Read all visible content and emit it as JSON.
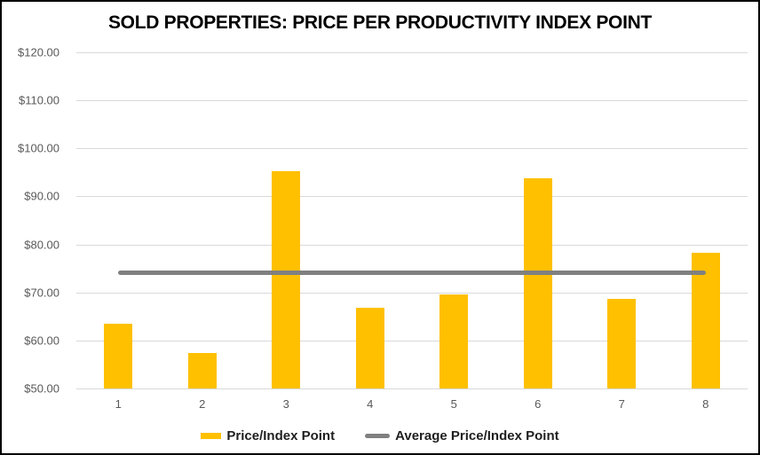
{
  "chart": {
    "title": "SOLD PROPERTIES: PRICE PER PRODUCTIVITY INDEX POINT"
  },
  "legend": {
    "items": [
      {
        "label": "Price/Index Point",
        "marker": "bar-swatch",
        "color": "#FFC000"
      },
      {
        "label": "Average Price/Index Point",
        "marker": "line-swatch",
        "color": "#808080"
      }
    ]
  },
  "chart_data": {
    "type": "bar",
    "title": "SOLD PROPERTIES: PRICE PER PRODUCTIVITY INDEX POINT",
    "categories": [
      "1",
      "2",
      "3",
      "4",
      "5",
      "6",
      "7",
      "8"
    ],
    "series": [
      {
        "name": "Price/Index Point",
        "type": "bar",
        "color": "#FFC000",
        "values": [
          63.4,
          57.4,
          95.2,
          66.9,
          69.6,
          93.8,
          68.7,
          78.2
        ]
      },
      {
        "name": "Average Price/Index Point",
        "type": "line",
        "color": "#808080",
        "values": [
          74.15,
          74.15,
          74.15,
          74.15,
          74.15,
          74.15,
          74.15,
          74.15
        ]
      }
    ],
    "xlabel": "",
    "ylabel": "",
    "ylim": [
      50,
      120
    ],
    "yticks": [
      {
        "value": 120,
        "label": "$120.00"
      },
      {
        "value": 110,
        "label": "$110.00"
      },
      {
        "value": 100,
        "label": "$100.00"
      },
      {
        "value": 90,
        "label": "$90.00"
      },
      {
        "value": 80,
        "label": "$80.00"
      },
      {
        "value": 70,
        "label": "$70.00"
      },
      {
        "value": 60,
        "label": "$60.00"
      },
      {
        "value": 50,
        "label": "$50.00"
      }
    ],
    "grid": true,
    "legend_position": "bottom",
    "colors": {
      "bar": "#FFC000",
      "average_line": "#808080",
      "gridline": "#D9D9D9",
      "axis_text": "#595959",
      "title_text": "#000000",
      "legend_text": "#1F1F1F",
      "background": "#FFFFFF",
      "frame_border": "#000000"
    }
  }
}
